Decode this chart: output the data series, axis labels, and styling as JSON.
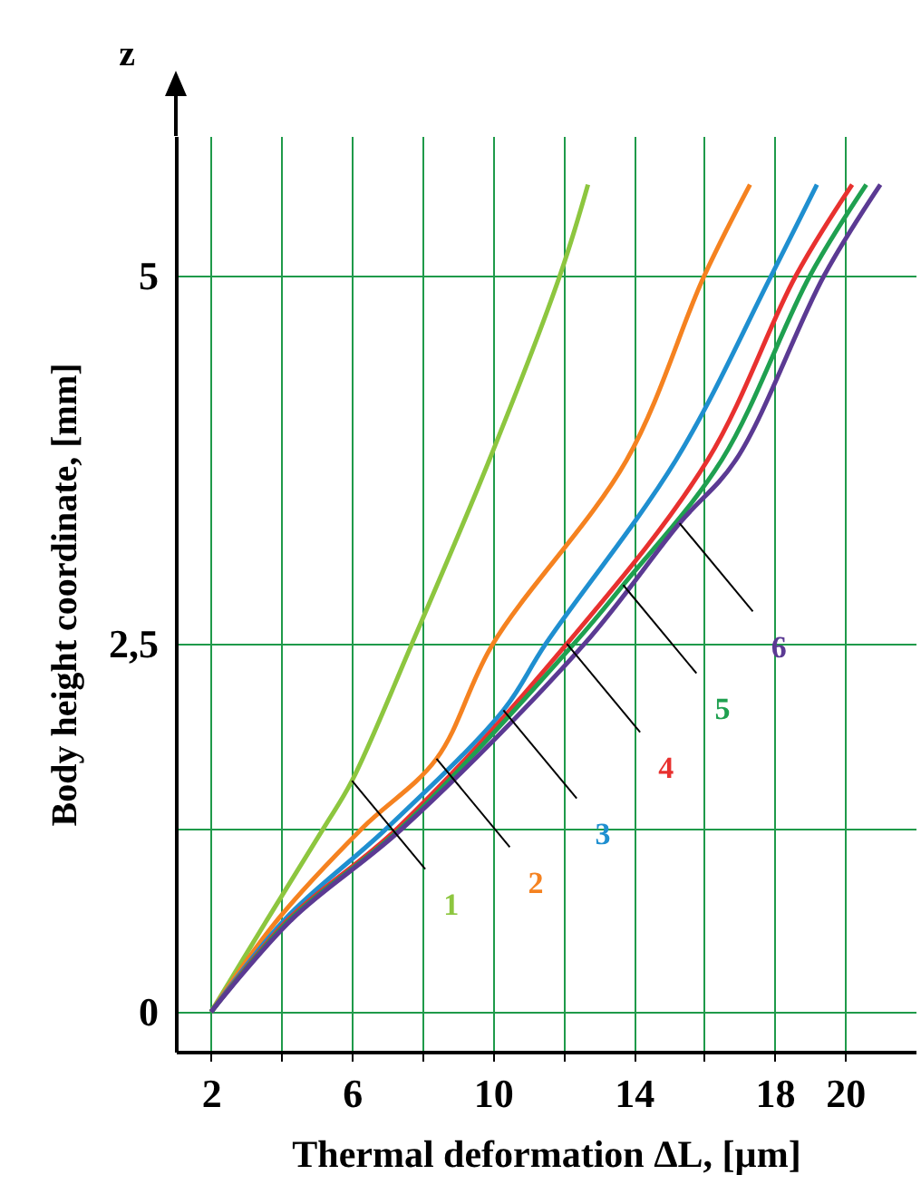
{
  "chart_data": {
    "type": "line",
    "xlabel": "Thermal deformation ΔL, [µm]",
    "ylabel": "Body height coordinate, [mm]",
    "annotations": [
      "z"
    ],
    "xlim": [
      1,
      22
    ],
    "ylim": [
      -0.27,
      5.95
    ],
    "xticks": [
      2,
      {
        "value": 4,
        "label": null
      },
      6,
      {
        "value": 8,
        "label": null
      },
      10,
      {
        "value": 12,
        "label": null
      },
      14,
      {
        "value": 16,
        "label": null
      },
      18,
      20
    ],
    "yticks": [
      0,
      {
        "value": 1.25,
        "label": null
      },
      {
        "value": 2.5,
        "label": "2,5"
      },
      5
    ],
    "grid": true,
    "series": [
      {
        "name": "1",
        "color": "#8dc63f",
        "x": [
          2,
          3.6,
          5.2,
          6,
          7.7,
          9.9,
          11.9,
          12.7
        ],
        "values": [
          0,
          0.63,
          1.25,
          1.57,
          2.5,
          3.75,
          5,
          5.62
        ]
      },
      {
        "name": "2",
        "color": "#f58220",
        "x": [
          2,
          3.9,
          6.3,
          8.4,
          10,
          13.8,
          16,
          17.3
        ],
        "values": [
          0,
          0.63,
          1.25,
          1.72,
          2.5,
          3.75,
          5,
          5.62
        ]
      },
      {
        "name": "3",
        "color": "#1f8fd0",
        "x": [
          2,
          4.1,
          7,
          10.3,
          11.5,
          15.2,
          17.9,
          19.2
        ],
        "values": [
          0,
          0.63,
          1.25,
          2.05,
          2.5,
          3.75,
          5,
          5.62
        ]
      },
      {
        "name": "4",
        "color": "#e8312f",
        "x": [
          2,
          4.2,
          7.3,
          12.1,
          16.1,
          18.6,
          20.2
        ],
        "values": [
          0,
          0.63,
          1.25,
          2.5,
          3.75,
          5,
          5.62
        ]
      },
      {
        "name": "5",
        "color": "#1fa050",
        "x": [
          2,
          4.25,
          7.4,
          12.3,
          13.7,
          16.5,
          19,
          20.6
        ],
        "values": [
          0,
          0.63,
          1.25,
          2.5,
          2.9,
          3.75,
          5,
          5.62
        ]
      },
      {
        "name": "6",
        "color": "#5b3a93",
        "x": [
          2,
          4.3,
          7.45,
          12.6,
          15.3,
          16.9,
          19.4,
          21
        ],
        "values": [
          0,
          0.63,
          1.25,
          2.5,
          3.32,
          3.75,
          5,
          5.62
        ]
      }
    ]
  }
}
